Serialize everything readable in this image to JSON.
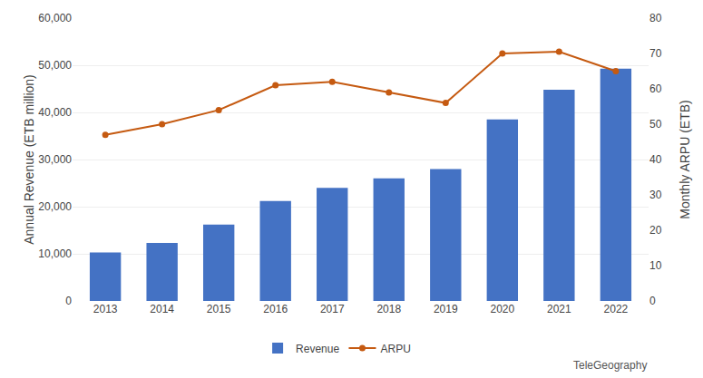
{
  "chart_data": {
    "type": "bar",
    "categories": [
      "2013",
      "2014",
      "2015",
      "2016",
      "2017",
      "2018",
      "2019",
      "2020",
      "2021",
      "2022"
    ],
    "series": [
      {
        "name": "Revenue",
        "type": "bar",
        "color": "#4472C4",
        "values": [
          10300,
          12300,
          16200,
          21200,
          24000,
          26000,
          28000,
          38500,
          44800,
          49300
        ]
      },
      {
        "name": "ARPU",
        "type": "line",
        "axis": "y2",
        "color": "#C55A11",
        "marker": "circle",
        "values": [
          47,
          50,
          54,
          61,
          62,
          59,
          56,
          70,
          70.5,
          65
        ]
      }
    ],
    "ylabel": "Annual Revenue (ETB million)",
    "y2label": "Monthly ARPU (ETB)",
    "ylim": [
      0,
      60000
    ],
    "yticks": [
      0,
      {
        "value": 10000,
        "label": "10,000"
      },
      {
        "value": 20000,
        "label": "20,000"
      },
      {
        "value": 30000,
        "label": "30,000"
      },
      {
        "value": 40000,
        "label": "40,000"
      },
      {
        "value": 50000,
        "label": "50,000"
      },
      {
        "value": 60000,
        "label": "60,000"
      }
    ],
    "y2lim": [
      0,
      80
    ],
    "y2ticks": [
      0,
      10,
      20,
      30,
      40,
      50,
      60,
      70,
      80
    ],
    "grid": true,
    "legend": "bottom",
    "annotations": [
      "TeleGeography"
    ]
  }
}
